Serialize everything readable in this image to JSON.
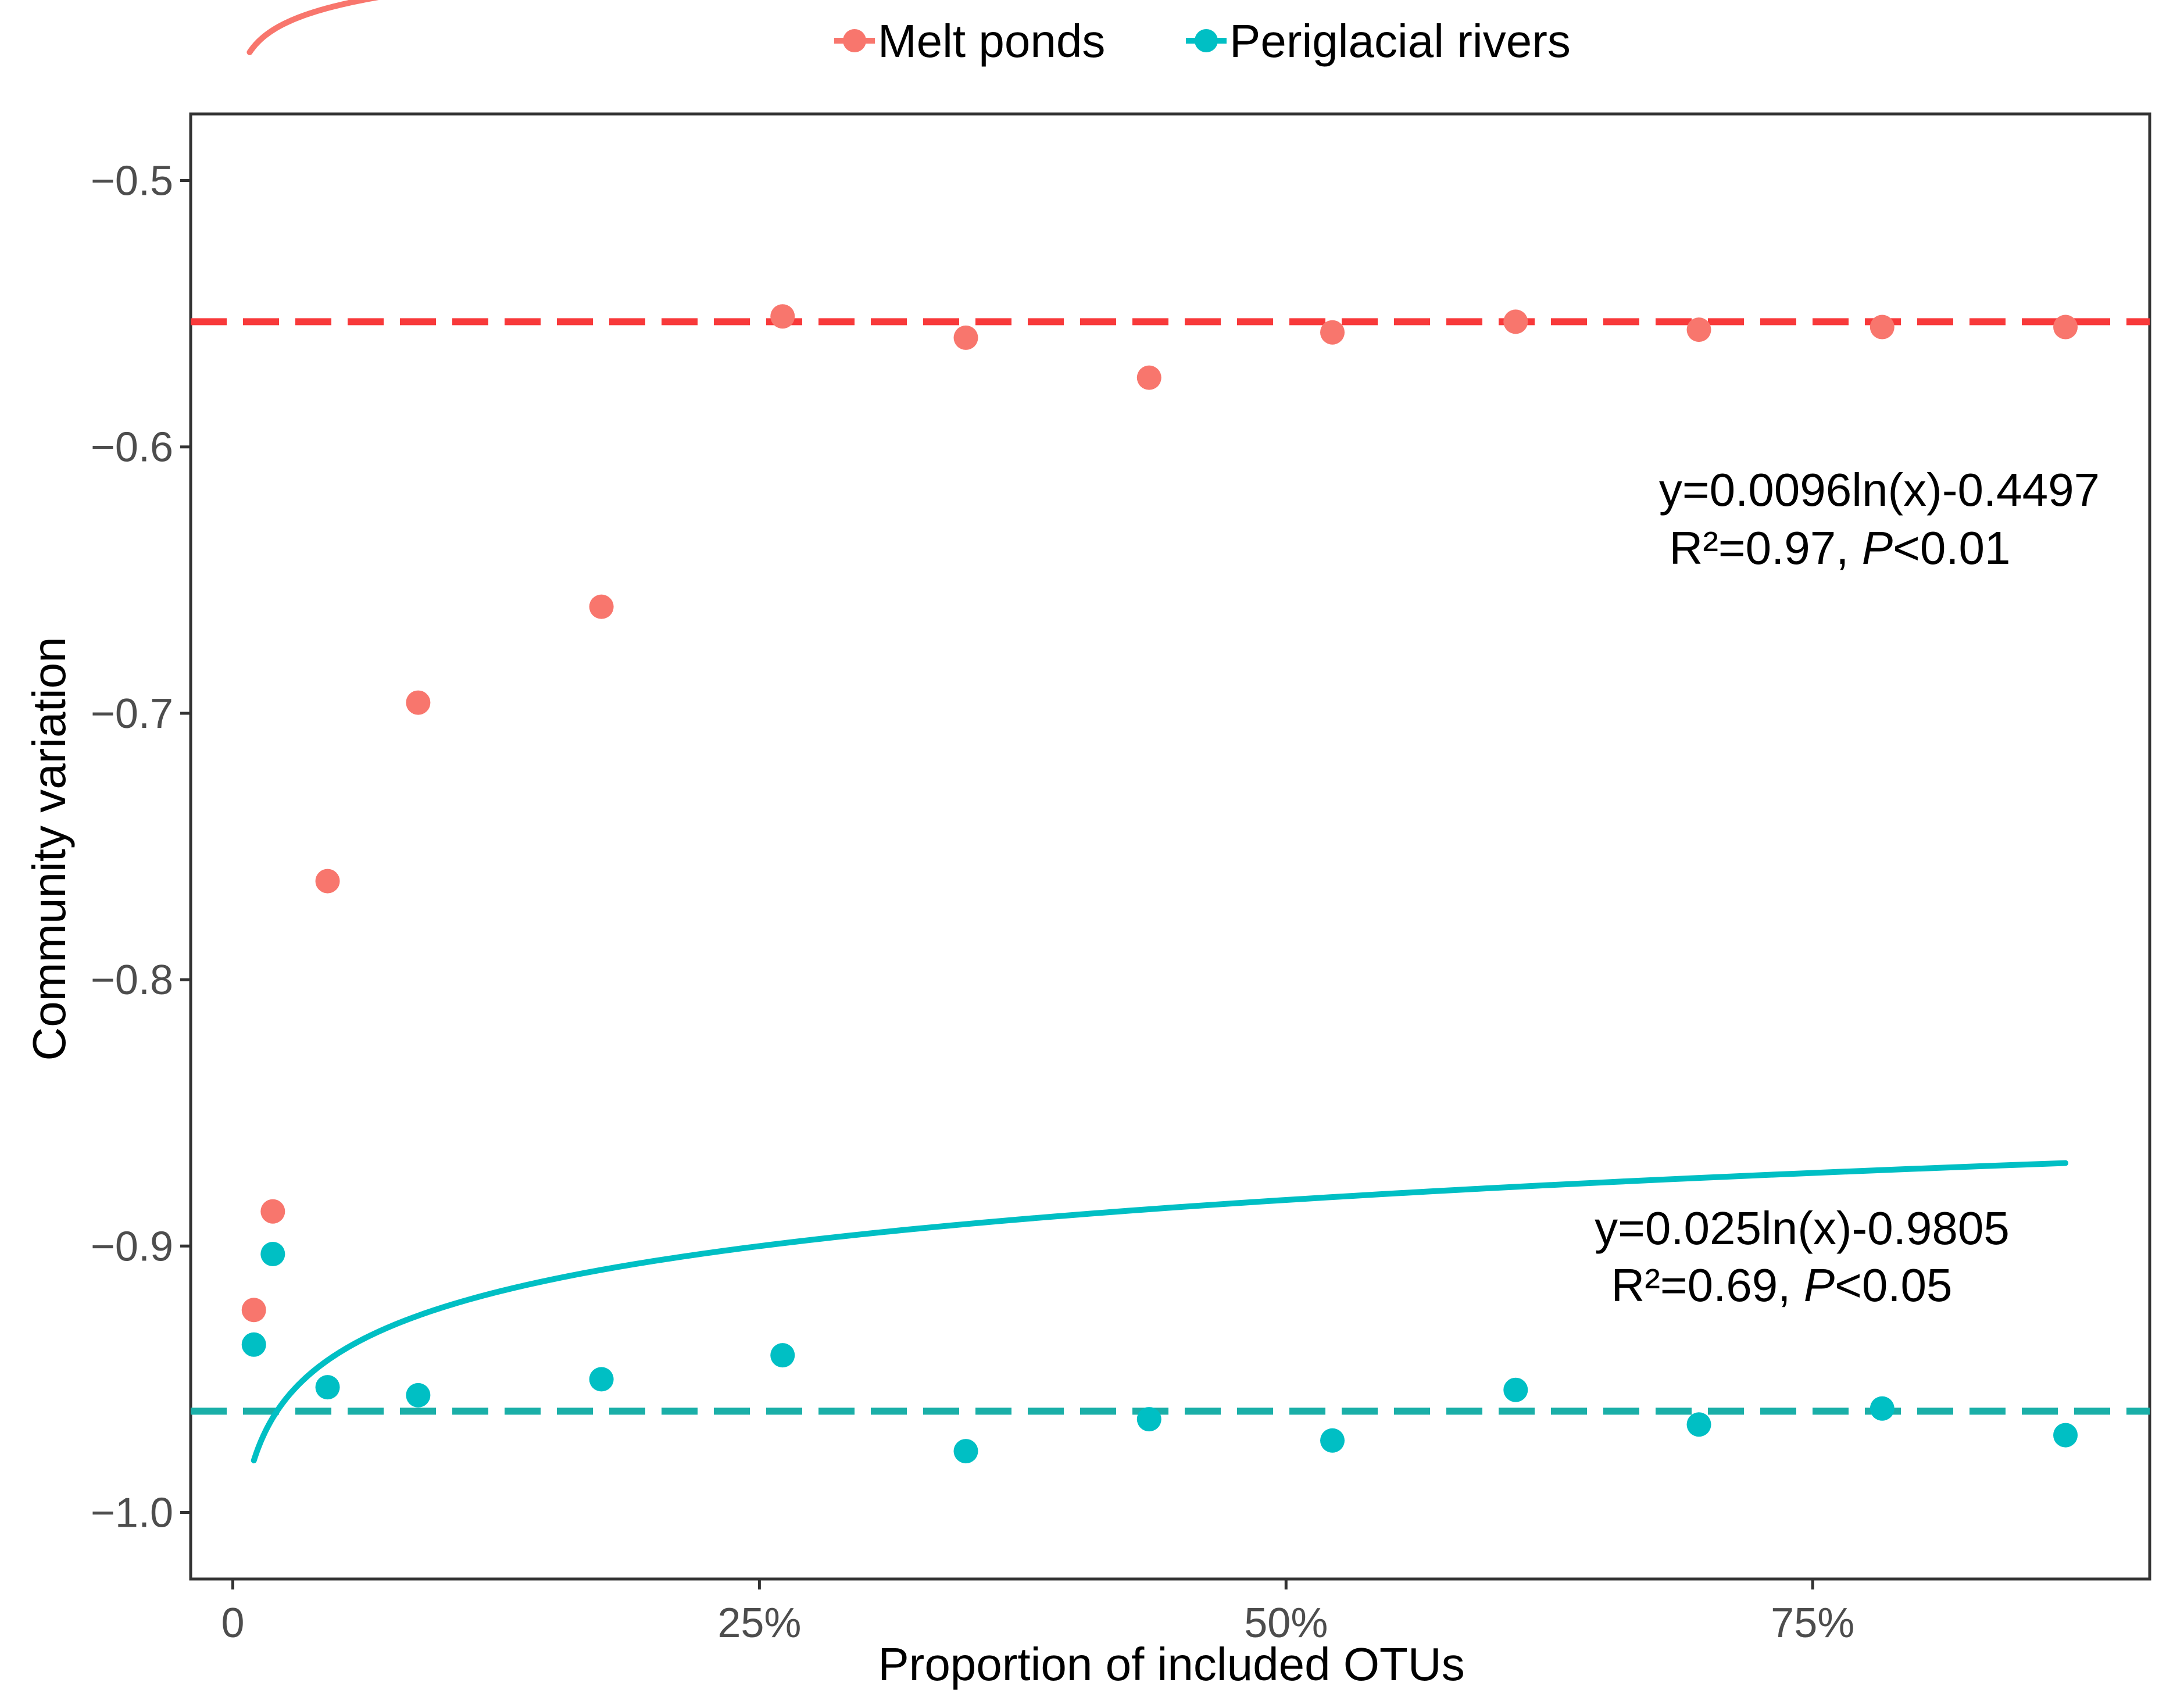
{
  "chart_data": {
    "type": "scatter",
    "title": "",
    "xlabel": "Proportion of included OTUs",
    "ylabel": "Community variation",
    "xlim": [
      -2,
      91
    ],
    "ylim": [
      -1.025,
      -0.475
    ],
    "grid": false,
    "legend_position": "top",
    "x_ticks": [
      {
        "value": 0,
        "label": "0"
      },
      {
        "value": 25,
        "label": "25%"
      },
      {
        "value": 50,
        "label": "50%"
      },
      {
        "value": 75,
        "label": "75%"
      }
    ],
    "y_ticks": [
      {
        "value": -0.5,
        "label": "−0.5"
      },
      {
        "value": -0.6,
        "label": "−0.6"
      },
      {
        "value": -0.7,
        "label": "−0.7"
      },
      {
        "value": -0.8,
        "label": "−0.8"
      },
      {
        "value": -0.9,
        "label": "−0.9"
      },
      {
        "value": -1.0,
        "label": "−1.0"
      }
    ],
    "series": [
      {
        "name": "Melt ponds",
        "color": "#F8766D",
        "hline_color": "#F8393A",
        "x": [
          1,
          1.9,
          4.5,
          8.8,
          17.5,
          26.1,
          34.8,
          43.5,
          52.2,
          60.9,
          69.6,
          78.3,
          87
        ],
        "y": [
          -0.924,
          -0.887,
          -0.763,
          -0.696,
          -0.66,
          -0.551,
          -0.559,
          -0.574,
          -0.557,
          -0.553,
          -0.556,
          -0.555,
          -0.555
        ],
        "fit": {
          "a": 0.0096,
          "b": -0.4497,
          "x_range": [
            0.8,
            87
          ]
        },
        "hline": -0.553,
        "equation": "y=0.0096ln(x)-0.4497",
        "r2_prefix": "R²=0.97, ",
        "p_symbol": "P",
        "p_value": "<0.01"
      },
      {
        "name": "Periglacial rivers",
        "color": "#00BFC4",
        "hline_color": "#1AAFA8",
        "x": [
          1,
          1.9,
          4.5,
          8.8,
          17.5,
          26.1,
          34.8,
          43.5,
          52.2,
          60.9,
          69.6,
          78.3,
          87
        ],
        "y": [
          -0.937,
          -0.903,
          -0.953,
          -0.956,
          -0.95,
          -0.941,
          -0.977,
          -0.965,
          -0.973,
          -0.954,
          -0.967,
          -0.961,
          -0.971
        ],
        "fit": {
          "a": 0.025,
          "b": -0.9805,
          "x_range": [
            1,
            87
          ]
        },
        "hline": -0.962,
        "equation": "y=0.025ln(x)-0.9805",
        "r2_prefix": "R²=0.69, ",
        "p_symbol": "P",
        "p_value": "<0.05"
      }
    ]
  }
}
